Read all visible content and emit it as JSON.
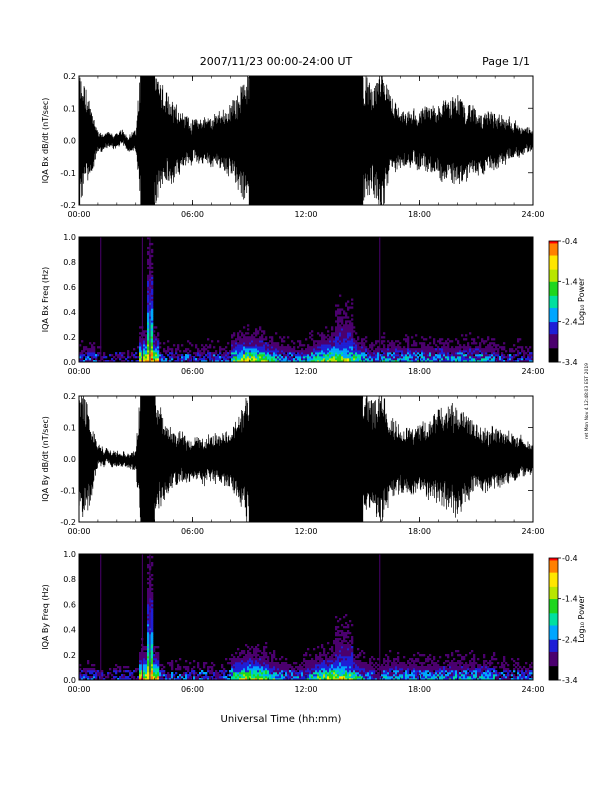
{
  "header": {
    "title": "2007/11/23  00:00-24:00 UT",
    "page": "Page 1/1"
  },
  "x_axis_title": "Universal Time (hh:mm)",
  "side_note": "ret Mon Nov 4 12:48:03 EST 2019",
  "colors": {
    "trace": "#000000",
    "background": "#ffffff",
    "colormap": [
      "#000000",
      "#4b006e",
      "#1f1fd6",
      "#00a6ff",
      "#00e0a0",
      "#1fd61f",
      "#b8e600",
      "#ffe600",
      "#ff8000",
      "#ff0000"
    ]
  },
  "chart_data": [
    {
      "type": "line",
      "ylabel": "IQA Bx dB/dt (nT/sec)",
      "xlim": [
        "00:00",
        "24:00"
      ],
      "ylim": [
        -0.2,
        0.2
      ],
      "xticks": [
        "00:00",
        "06:00",
        "12:00",
        "18:00",
        "24:00"
      ],
      "yticks": [
        "-0.2",
        "-0.1",
        "0.0",
        "0.1",
        "0.2"
      ],
      "envelope": {
        "x_hours": [
          0,
          0.5,
          1.0,
          1.5,
          2.0,
          2.5,
          3.0,
          3.25,
          3.5,
          4.0,
          4.5,
          5.0,
          5.5,
          6.0,
          7.0,
          8.0,
          9.0,
          10.0,
          11.0,
          12.0,
          13.0,
          14.0,
          15.0,
          15.5,
          16.0,
          16.5,
          17.0,
          18.0,
          19.0,
          20.0,
          21.0,
          22.0,
          23.0,
          24.0
        ],
        "amplitude": [
          0.2,
          0.12,
          0.03,
          0.02,
          0.02,
          0.02,
          0.03,
          0.2,
          0.2,
          0.2,
          0.14,
          0.12,
          0.08,
          0.06,
          0.07,
          0.1,
          0.2,
          0.2,
          0.2,
          0.2,
          0.2,
          0.2,
          0.2,
          0.15,
          0.2,
          0.12,
          0.08,
          0.08,
          0.11,
          0.13,
          0.09,
          0.08,
          0.05,
          0.03
        ]
      }
    },
    {
      "type": "heatmap",
      "ylabel": "IQA Bx Freq (Hz)",
      "xlim": [
        "00:00",
        "24:00"
      ],
      "ylim": [
        0.0,
        1.0
      ],
      "xticks": [
        "00:00",
        "06:00",
        "12:00",
        "18:00",
        "24:00"
      ],
      "yticks": [
        "0.0",
        "0.2",
        "0.4",
        "0.6",
        "0.8",
        "1.0"
      ],
      "colorbar": {
        "label": "Log₁₀ Power",
        "range": [
          -3.4,
          -0.4
        ],
        "ticks": [
          "-0.4",
          "-1.4",
          "-2.4",
          "-3.4"
        ]
      }
    },
    {
      "type": "line",
      "ylabel": "IQA By dB/dt (nT/sec)",
      "xlim": [
        "00:00",
        "24:00"
      ],
      "ylim": [
        -0.2,
        0.2
      ],
      "xticks": [
        "00:00",
        "06:00",
        "12:00",
        "18:00",
        "24:00"
      ],
      "yticks": [
        "-0.2",
        "-0.1",
        "0.0",
        "0.1",
        "0.2"
      ],
      "envelope": {
        "x_hours": [
          0,
          0.5,
          1.0,
          1.5,
          2.0,
          2.5,
          3.0,
          3.25,
          3.5,
          4.0,
          4.5,
          5.0,
          5.5,
          6.0,
          7.0,
          8.0,
          9.0,
          10.0,
          11.0,
          12.0,
          13.0,
          14.0,
          15.0,
          15.5,
          16.0,
          16.5,
          17.0,
          18.0,
          19.0,
          20.0,
          21.0,
          22.0,
          23.0,
          24.0
        ],
        "amplitude": [
          0.2,
          0.15,
          0.03,
          0.02,
          0.02,
          0.02,
          0.03,
          0.2,
          0.2,
          0.2,
          0.12,
          0.08,
          0.07,
          0.06,
          0.07,
          0.08,
          0.2,
          0.2,
          0.2,
          0.2,
          0.2,
          0.2,
          0.2,
          0.16,
          0.2,
          0.12,
          0.1,
          0.1,
          0.14,
          0.16,
          0.1,
          0.09,
          0.07,
          0.04
        ]
      }
    },
    {
      "type": "heatmap",
      "ylabel": "IQA By Freq (Hz)",
      "xlim": [
        "00:00",
        "24:00"
      ],
      "ylim": [
        0.0,
        1.0
      ],
      "xticks": [
        "00:00",
        "06:00",
        "12:00",
        "18:00",
        "24:00"
      ],
      "yticks": [
        "0.0",
        "0.2",
        "0.4",
        "0.6",
        "0.8",
        "1.0"
      ],
      "colorbar": {
        "label": "Log₁₀ Power",
        "range": [
          -3.4,
          -0.4
        ],
        "ticks": [
          "-0.4",
          "-1.4",
          "-2.4",
          "-3.4"
        ]
      }
    }
  ]
}
